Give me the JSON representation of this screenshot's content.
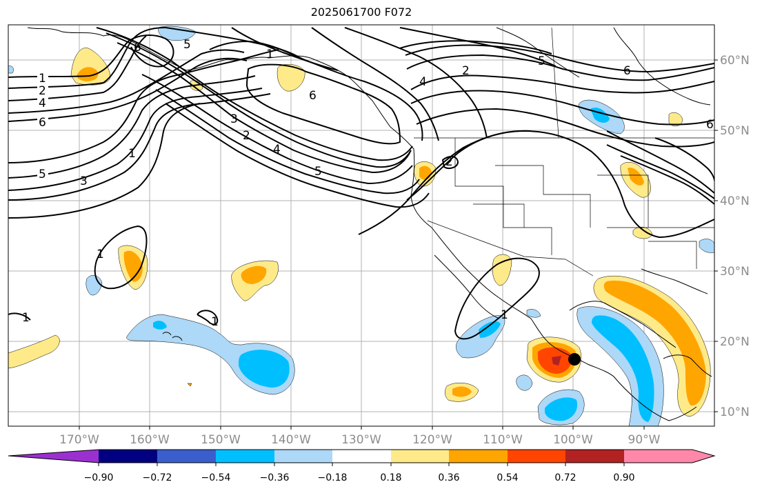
{
  "title": "2025061700 F072",
  "map": {
    "lon_ticks": [
      "170°W",
      "160°W",
      "150°W",
      "140°W",
      "130°W",
      "120°W",
      "110°W",
      "100°W",
      "90°W"
    ],
    "lat_ticks": [
      "60°N",
      "50°N",
      "40°N",
      "30°N",
      "20°N",
      "10°N"
    ],
    "lon_range": [
      -180,
      -80
    ],
    "lat_range": [
      8,
      65
    ],
    "grid": true,
    "contour_labels": [
      "1",
      "2",
      "4",
      "6",
      "5",
      "3",
      "1",
      "6",
      "5",
      "1",
      "2",
      "4",
      "6",
      "2",
      "3",
      "4",
      "5",
      "2",
      "5",
      "6",
      "6",
      "1",
      "1",
      "1",
      "1"
    ]
  },
  "colorbar": {
    "labels": [
      "−0.90",
      "−0.72",
      "−0.54",
      "−0.36",
      "−0.18",
      "0.18",
      "0.36",
      "0.54",
      "0.72",
      "0.90"
    ],
    "colors": [
      "#9b30d0",
      "#000080",
      "#3a5fcd",
      "#00bfff",
      "#add8f7",
      "#ffffff",
      "#ffea8a",
      "#ffa500",
      "#ff4500",
      "#b22222",
      "#ff88aa"
    ]
  }
}
